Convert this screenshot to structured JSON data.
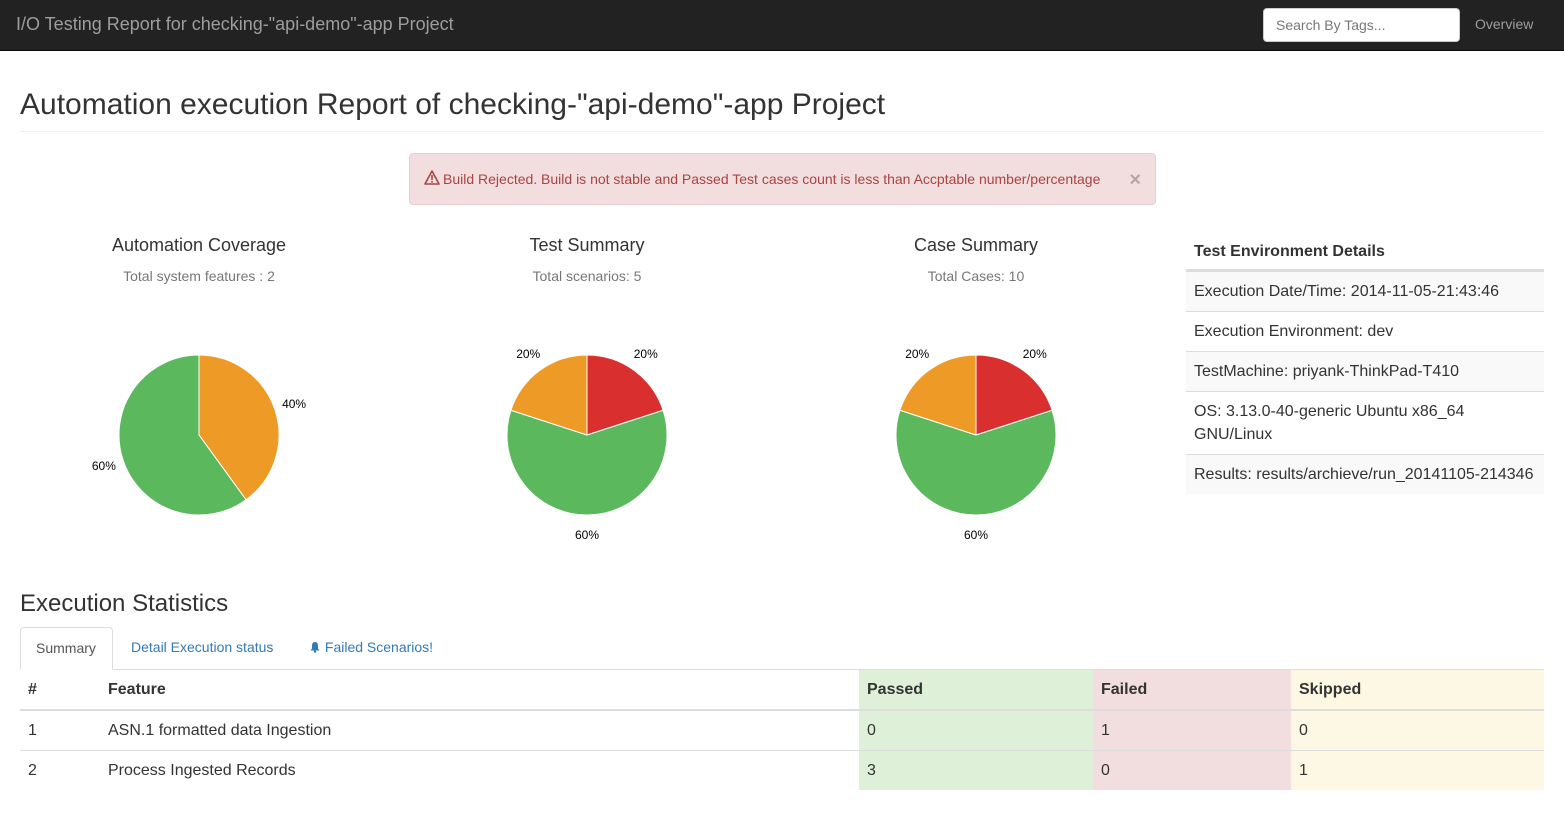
{
  "navbar": {
    "brand": "I/O Testing Report for checking-\"api-demo\"-app Project",
    "search_placeholder": "Search By Tags...",
    "overview_label": "Overview"
  },
  "page": {
    "title": "Automation execution Report of checking-\"api-demo\"-app Project"
  },
  "alert": {
    "text": "Build Rejected. Build is not stable and Passed Test cases count is less than Accptable number/percentage",
    "close": "×",
    "icon": "warning-triangle-icon"
  },
  "colors": {
    "passed": "#5cb85c",
    "failed": "#d9302f",
    "skipped": "#ee9a27"
  },
  "chart_data": [
    {
      "type": "pie",
      "title": "Automation Coverage",
      "subtitle": "Total system features : 2",
      "slices": [
        {
          "label": "40%",
          "value": 40,
          "color": "#ee9a27"
        },
        {
          "label": "60%",
          "value": 60,
          "color": "#5cb85c"
        }
      ]
    },
    {
      "type": "pie",
      "title": "Test Summary",
      "subtitle": "Total scenarios: 5",
      "slices": [
        {
          "label": "20%",
          "value": 20,
          "color": "#d9302f"
        },
        {
          "label": "60%",
          "value": 60,
          "color": "#5cb85c"
        },
        {
          "label": "20%",
          "value": 20,
          "color": "#ee9a27"
        }
      ]
    },
    {
      "type": "pie",
      "title": "Case Summary",
      "subtitle": "Total Cases: 10",
      "slices": [
        {
          "label": "20%",
          "value": 20,
          "color": "#d9302f"
        },
        {
          "label": "60%",
          "value": 60,
          "color": "#5cb85c"
        },
        {
          "label": "20%",
          "value": 20,
          "color": "#ee9a27"
        }
      ]
    }
  ],
  "environment": {
    "heading": "Test Environment Details",
    "rows": [
      "Execution Date/Time: 2014-11-05-21:43:46",
      "Execution Environment: dev",
      "TestMachine: priyank-ThinkPad-T410",
      "OS: 3.13.0-40-generic Ubuntu x86_64 GNU/Linux",
      "Results: results/archieve/run_20141105-214346"
    ]
  },
  "stats": {
    "title": "Execution Statistics",
    "tabs": [
      {
        "label": "Summary",
        "active": true
      },
      {
        "label": "Detail Execution status",
        "active": false
      },
      {
        "label": "Failed Scenarios!",
        "active": false,
        "icon": "bell-icon"
      }
    ],
    "headers": [
      "#",
      "Feature",
      "Passed",
      "Failed",
      "Skipped"
    ],
    "rows": [
      [
        "1",
        "ASN.1 formatted data Ingestion",
        "0",
        "1",
        "0"
      ],
      [
        "2",
        "Process Ingested Records",
        "3",
        "0",
        "1"
      ]
    ]
  }
}
